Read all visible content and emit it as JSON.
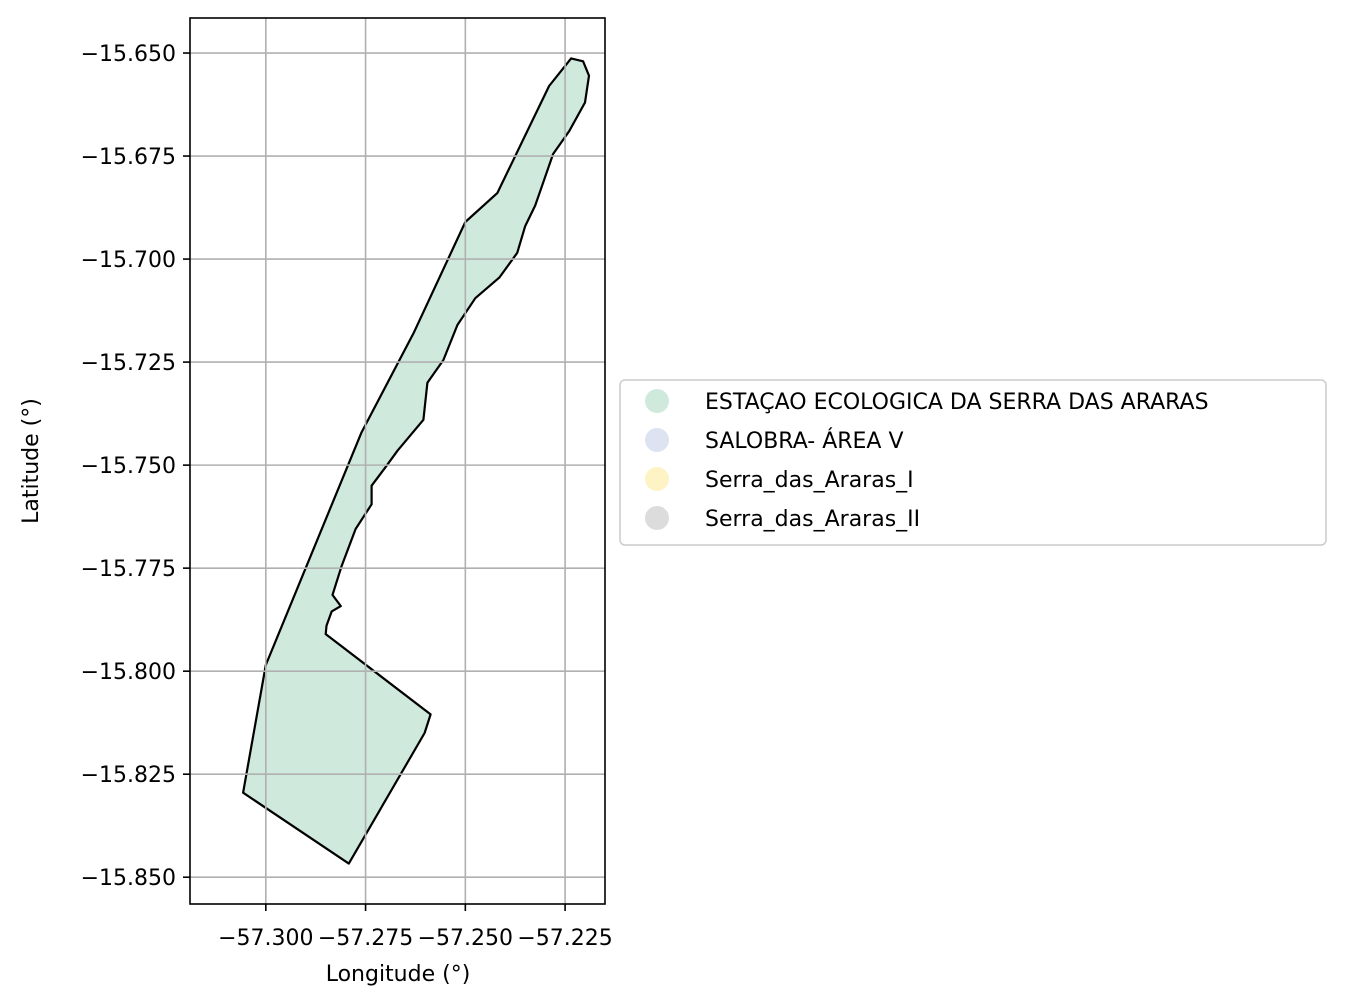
{
  "map": {
    "xlabel": "Longitude (°)",
    "ylabel": "Latitude (°)",
    "xlim": [
      -57.319,
      -57.215
    ],
    "ylim": [
      -15.8565,
      -15.6415
    ],
    "x_ticks": [
      -57.3,
      -57.275,
      -57.25,
      -57.225
    ],
    "x_tick_labels": [
      "−57.300",
      "−57.275",
      "−57.250",
      "−57.225"
    ],
    "y_ticks": [
      -15.65,
      -15.675,
      -15.7,
      -15.725,
      -15.75,
      -15.775,
      -15.8,
      -15.825,
      -15.85
    ],
    "y_tick_labels": [
      "−15.650",
      "−15.675",
      "−15.700",
      "−15.725",
      "−15.750",
      "−15.775",
      "−15.800",
      "−15.825",
      "−15.850"
    ],
    "grid": true,
    "legend_position": "right of map, vertically centered",
    "feature_color": "#cfeadd",
    "edge_color": "#000000"
  },
  "legend": {
    "items": [
      {
        "label": "ESTAÇAO ECOLOGICA DA SERRA DAS ARARAS",
        "color": "#cfeadd"
      },
      {
        "label": "SALOBRA- ÁREA V",
        "color": "#dde3f0"
      },
      {
        "label": "Serra_das_Araras_I",
        "color": "#fdf3c4"
      },
      {
        "label": "Serra_das_Araras_II",
        "color": "#dcdcdc"
      }
    ]
  },
  "chart_data": {
    "type": "map",
    "xlabel": "Longitude (°)",
    "ylabel": "Latitude (°)",
    "xlim": [
      -57.319,
      -57.215
    ],
    "ylim": [
      -15.8565,
      -15.6415
    ],
    "grid": true,
    "series": [
      {
        "name": "ESTAÇAO ECOLOGICA DA SERRA DAS ARARAS",
        "color": "#cfeadd",
        "outline": [
          [
            -57.3057,
            -15.8295
          ],
          [
            -57.2792,
            -15.8467
          ],
          [
            -57.2602,
            -15.815
          ],
          [
            -57.2587,
            -15.8105
          ],
          [
            -57.285,
            -15.791
          ],
          [
            -57.2848,
            -15.789
          ],
          [
            -57.2835,
            -15.7855
          ],
          [
            -57.2812,
            -15.7842
          ],
          [
            -57.2833,
            -15.7815
          ],
          [
            -57.281,
            -15.7745
          ],
          [
            -57.2775,
            -15.7655
          ],
          [
            -57.2735,
            -15.7595
          ],
          [
            -57.2735,
            -15.755
          ],
          [
            -57.27,
            -15.7505
          ],
          [
            -57.267,
            -15.7465
          ],
          [
            -57.2605,
            -15.739
          ],
          [
            -57.2595,
            -15.73
          ],
          [
            -57.2555,
            -15.7245
          ],
          [
            -57.252,
            -15.716
          ],
          [
            -57.2475,
            -15.7095
          ],
          [
            -57.2415,
            -15.7045
          ],
          [
            -57.237,
            -15.6985
          ],
          [
            -57.235,
            -15.692
          ],
          [
            -57.2325,
            -15.687
          ],
          [
            -57.2305,
            -15.6815
          ],
          [
            -57.228,
            -15.6745
          ],
          [
            -57.224,
            -15.669
          ],
          [
            -57.22,
            -15.662
          ],
          [
            -57.219,
            -15.6555
          ],
          [
            -57.2205,
            -15.652
          ],
          [
            -57.2235,
            -15.6513
          ],
          [
            -57.229,
            -15.658
          ],
          [
            -57.242,
            -15.684
          ],
          [
            -57.25,
            -15.691
          ],
          [
            -57.263,
            -15.718
          ],
          [
            -57.276,
            -15.742
          ],
          [
            -57.3,
            -15.7985
          ],
          [
            -57.3057,
            -15.8295
          ]
        ]
      }
    ]
  }
}
